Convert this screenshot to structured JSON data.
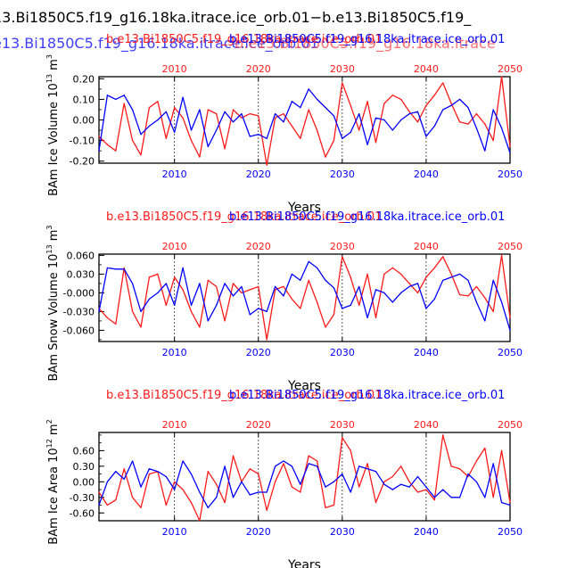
{
  "main_title": {
    "line1": "13.Bi1850C5.f19_g16.18ka.itrace.ice_orb.01−b.e13.Bi1850C5.f19_",
    "line2": "e13.Bi1850C5.f19_g16.18ka.itrace.ice_orb.01",
    "line2_overlay": "b.e13.Bi1850C5.f19_g16.18ka.itrace"
  },
  "colors": {
    "red": "#ff1a1a",
    "blue": "#0000ff",
    "black": "#000000",
    "grid": "#333333"
  },
  "chart_data": [
    {
      "type": "line",
      "id": "ice_volume",
      "ylabel": "BAm Ice Volume 10",
      "ylabel_exp": "13",
      "ylabel_unit": "m",
      "ylabel_unit_exp": "3",
      "xlabel": "Years",
      "title_red": "b.e13.Bi1850C5.f19_g16.18ka.itrace.ice_orb.01",
      "title_blue": "b.e13.Bi1850C5.f19_g16.18ka.itrace.ice_orb.01",
      "xlim": [
        2001,
        2050
      ],
      "ylim": [
        -0.21,
        0.21
      ],
      "xticks": [
        2010,
        2020,
        2030,
        2040,
        2050
      ],
      "yticks": [
        -0.2,
        -0.1,
        0.0,
        0.1,
        0.2
      ],
      "ytick_labels": [
        "-0.20",
        "-0.10",
        "0.00",
        "0.10",
        "0.20"
      ],
      "series": [
        {
          "name": "red",
          "color": "red",
          "values": [
            -0.08,
            -0.12,
            -0.15,
            0.08,
            -0.1,
            -0.17,
            0.06,
            0.09,
            -0.09,
            0.06,
            0.01,
            -0.1,
            -0.18,
            0.05,
            0.03,
            -0.14,
            0.05,
            0.01,
            0.03,
            0.02,
            -0.22,
            0.01,
            0.03,
            -0.03,
            -0.09,
            0.05,
            -0.05,
            -0.18,
            -0.1,
            0.18,
            0.07,
            -0.05,
            0.09,
            -0.11,
            0.08,
            0.12,
            0.1,
            0.04,
            -0.01,
            0.07,
            0.12,
            0.18,
            0.08,
            -0.01,
            -0.02,
            0.03,
            -0.02,
            -0.1,
            0.21,
            -0.13
          ]
        },
        {
          "name": "blue",
          "color": "blue",
          "values": [
            -0.15,
            0.12,
            0.1,
            0.12,
            0.05,
            -0.07,
            -0.03,
            0.0,
            0.04,
            -0.06,
            0.11,
            -0.05,
            0.05,
            -0.13,
            -0.05,
            0.04,
            -0.01,
            0.03,
            -0.08,
            -0.07,
            -0.09,
            0.03,
            -0.01,
            0.09,
            0.06,
            0.15,
            0.1,
            0.06,
            0.02,
            -0.09,
            -0.06,
            0.03,
            -0.12,
            0.01,
            0.0,
            -0.05,
            0.0,
            0.03,
            0.04,
            -0.08,
            -0.03,
            0.05,
            0.07,
            0.1,
            0.06,
            -0.04,
            -0.15,
            0.05,
            -0.04,
            -0.16
          ]
        }
      ]
    },
    {
      "type": "line",
      "id": "snow_volume",
      "ylabel": "BAm Snow Volume 10",
      "ylabel_exp": "13",
      "ylabel_unit": "m",
      "ylabel_unit_exp": "3",
      "xlabel": "Years",
      "title_red": "b.e13.Bi1850C5.f19_g16.18ka.itrace.ice_orb.01",
      "title_blue": "b.e13.Bi1850C5.f19_g16.18ka.itrace.ice_orb.01",
      "xlim": [
        2001,
        2050
      ],
      "ylim": [
        -0.078,
        0.062
      ],
      "xticks": [
        2010,
        2020,
        2030,
        2040,
        2050
      ],
      "yticks": [
        -0.06,
        -0.03,
        0.0,
        0.03,
        0.06
      ],
      "ytick_labels": [
        "-0.060",
        "-0.030",
        "-0.000",
        "0.030",
        "0.060"
      ],
      "series": [
        {
          "name": "red",
          "color": "red",
          "values": [
            -0.025,
            -0.04,
            -0.05,
            0.04,
            -0.03,
            -0.055,
            0.025,
            0.03,
            -0.02,
            0.025,
            0.005,
            -0.03,
            -0.055,
            0.02,
            0.01,
            -0.045,
            0.015,
            0.0,
            0.005,
            0.01,
            -0.075,
            0.005,
            0.01,
            -0.01,
            -0.025,
            0.02,
            -0.015,
            -0.055,
            -0.035,
            0.058,
            0.025,
            -0.02,
            0.03,
            -0.04,
            0.03,
            0.04,
            0.03,
            0.015,
            0.0,
            0.025,
            0.04,
            0.058,
            0.03,
            -0.003,
            -0.005,
            0.01,
            -0.008,
            -0.03,
            0.06,
            -0.04
          ]
        },
        {
          "name": "blue",
          "color": "blue",
          "values": [
            -0.03,
            0.04,
            0.038,
            0.038,
            0.015,
            -0.03,
            -0.01,
            0.0,
            0.015,
            -0.02,
            0.04,
            -0.02,
            0.015,
            -0.045,
            -0.02,
            0.015,
            -0.005,
            0.01,
            -0.035,
            -0.025,
            -0.03,
            0.01,
            -0.005,
            0.03,
            0.02,
            0.05,
            0.04,
            0.02,
            0.008,
            -0.025,
            -0.02,
            0.01,
            -0.04,
            0.005,
            0.0,
            -0.015,
            0.0,
            0.01,
            0.015,
            -0.025,
            -0.01,
            0.02,
            0.025,
            0.03,
            0.02,
            -0.015,
            -0.045,
            0.02,
            -0.015,
            -0.06
          ]
        }
      ]
    },
    {
      "type": "line",
      "id": "ice_area",
      "ylabel": "BAm Ice Area 10",
      "ylabel_exp": "12",
      "ylabel_unit": "m",
      "ylabel_unit_exp": "2",
      "xlabel": "Years",
      "title_red": "b.e13.Bi1850C5.f19_g16.18ka.itrace.ice_orb.01",
      "title_blue": "b.e13.Bi1850C5.f19_g16.18ka.itrace.ice_orb.01",
      "xlim": [
        2001,
        2050
      ],
      "ylim": [
        -0.75,
        0.95
      ],
      "xticks": [
        2010,
        2020,
        2030,
        2040,
        2050
      ],
      "yticks": [
        -0.6,
        -0.3,
        0.0,
        0.3,
        0.6
      ],
      "ytick_labels": [
        "-0.60",
        "-0.30",
        "0.00",
        "0.30",
        "0.60"
      ],
      "series": [
        {
          "name": "red",
          "color": "red",
          "values": [
            -0.2,
            -0.45,
            -0.35,
            0.25,
            -0.3,
            -0.5,
            0.15,
            0.2,
            -0.45,
            0.0,
            -0.15,
            -0.4,
            -0.75,
            0.2,
            -0.05,
            -0.4,
            0.5,
            0.0,
            0.25,
            0.15,
            -0.55,
            0.0,
            0.35,
            -0.1,
            -0.2,
            0.5,
            0.4,
            -0.5,
            -0.45,
            0.85,
            0.6,
            -0.1,
            0.35,
            -0.4,
            0.0,
            0.1,
            0.3,
            0.0,
            -0.2,
            -0.15,
            -0.35,
            0.9,
            0.3,
            0.25,
            0.1,
            0.4,
            0.65,
            -0.3,
            0.6,
            -0.4
          ]
        },
        {
          "name": "blue",
          "color": "blue",
          "values": [
            -0.45,
            0.0,
            0.2,
            0.05,
            0.4,
            -0.1,
            0.25,
            0.2,
            0.1,
            -0.15,
            0.4,
            0.15,
            -0.2,
            -0.5,
            -0.3,
            0.3,
            -0.3,
            0.0,
            -0.25,
            -0.2,
            -0.2,
            0.3,
            0.4,
            0.3,
            -0.05,
            0.35,
            0.3,
            -0.1,
            0.0,
            0.15,
            -0.2,
            0.3,
            0.25,
            0.2,
            -0.05,
            -0.15,
            -0.05,
            -0.1,
            0.1,
            -0.1,
            -0.3,
            -0.15,
            -0.3,
            -0.3,
            0.15,
            0.0,
            -0.3,
            0.35,
            -0.4,
            -0.45
          ]
        }
      ]
    }
  ]
}
